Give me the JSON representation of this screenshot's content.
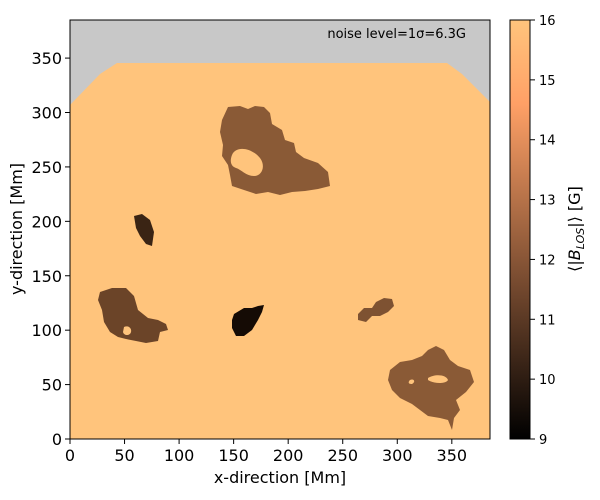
{
  "chart_data": {
    "type": "heatmap",
    "xlabel": "x-direction [Mm]",
    "ylabel": "y-direction [Mm]",
    "xlim": [
      0,
      385
    ],
    "ylim": [
      0,
      385
    ],
    "x_ticks": [
      "0",
      "50",
      "100",
      "150",
      "200",
      "250",
      "300",
      "350"
    ],
    "y_ticks": [
      "0",
      "50",
      "100",
      "150",
      "200",
      "250",
      "300",
      "350"
    ],
    "annotation": "noise level=1σ=6.3G",
    "colorbar": {
      "label": "⟨|B_LOS|⟩ [G]",
      "ticks": [
        "9",
        "10",
        "11",
        "12",
        "13",
        "14",
        "15",
        "16"
      ],
      "range": [
        9,
        16
      ],
      "colormap": "copper"
    },
    "background_value": 16,
    "masked_color": "#c8c8c8",
    "features": [
      {
        "id": "region-top-center",
        "x": 240,
        "y": 270,
        "value": 12
      },
      {
        "id": "region-small-dark",
        "x": 67,
        "y": 192,
        "value": 9.9
      },
      {
        "id": "region-left",
        "x": 55,
        "y": 115,
        "value": 11.5
      },
      {
        "id": "region-center-dark",
        "x": 160,
        "y": 108,
        "value": 9.3
      },
      {
        "id": "region-small-right",
        "x": 285,
        "y": 118,
        "value": 12.4
      },
      {
        "id": "region-bottom-right",
        "x": 330,
        "y": 55,
        "value": 12
      }
    ]
  }
}
